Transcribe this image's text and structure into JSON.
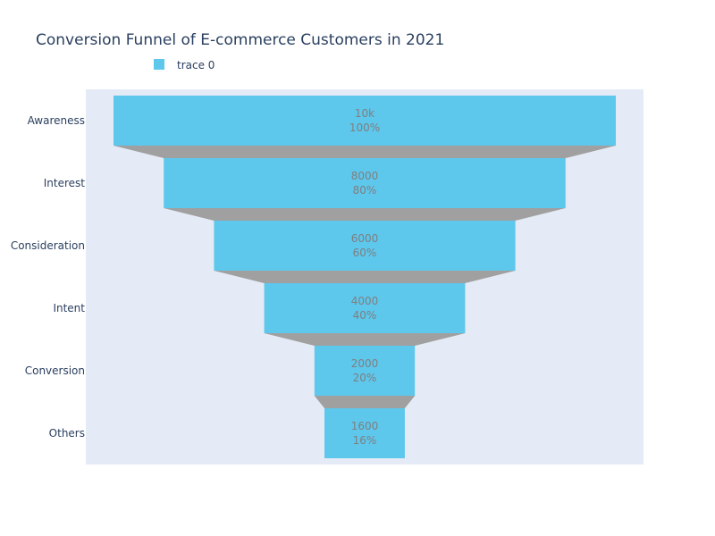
{
  "chart_data": {
    "type": "funnel",
    "title": "Conversion Funnel of E-commerce Customers in 2021",
    "legend": {
      "entries": [
        "trace 0"
      ],
      "placement": "top-left"
    },
    "categories": [
      "Awareness",
      "Interest",
      "Consideration",
      "Intent",
      "Conversion",
      "Others"
    ],
    "series": [
      {
        "name": "trace 0",
        "values": [
          10000,
          8000,
          6000,
          4000,
          2000,
          1600
        ],
        "value_labels": [
          "10k",
          "8000",
          "6000",
          "4000",
          "2000",
          "1600"
        ],
        "percent_labels": [
          "100%",
          "80%",
          "60%",
          "40%",
          "20%",
          "16%"
        ]
      }
    ],
    "grid": false
  },
  "colors": {
    "bar": "#5ec7ec",
    "connector": "#a0a0a0",
    "plot_bg": "#e5ebf6",
    "title": "#2a3f5f",
    "value_text": "#7f7f7f"
  }
}
